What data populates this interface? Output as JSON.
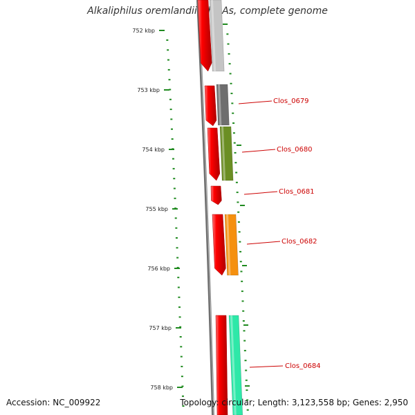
{
  "title": "Alkaliphilus oremlandii OhILAs, complete genome",
  "footer": {
    "accession": "Accession: NC_009922",
    "summary": "Topology: circular; Length: 3,123,558 bp; Genes: 2,950"
  },
  "colors": {
    "backbone": "#7a7a7a",
    "tick": "#1f8a1f",
    "strand_feature": "#ee0000",
    "label": "#cc0000"
  },
  "ticks": [
    "752 kbp",
    "753 kbp",
    "754 kbp",
    "755 kbp",
    "756 kbp",
    "757 kbp",
    "758 kbp"
  ],
  "genes": [
    {
      "label": "",
      "color": "#c4c4c4"
    },
    {
      "label": "Clos_0679",
      "color": "#6e6e6e"
    },
    {
      "label": "Clos_0680",
      "color": "#6b8e23"
    },
    {
      "label": "Clos_0681",
      "color": ""
    },
    {
      "label": "Clos_0682",
      "color": "#f5900f"
    },
    {
      "label": "Clos_0684",
      "color": "#2ee8a8"
    }
  ]
}
